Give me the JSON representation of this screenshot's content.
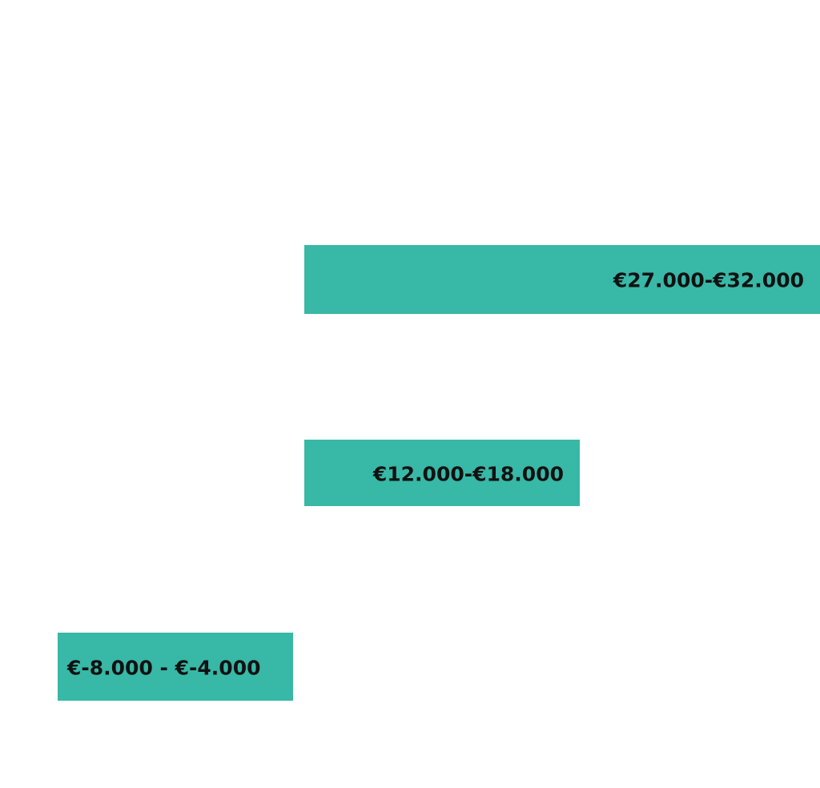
{
  "chart_data": {
    "type": "bar",
    "orientation": "horizontal",
    "subtype": "range",
    "bar_color": "#38b8a6",
    "label_color": "#111111",
    "grid": false,
    "legend": "none",
    "xlim": [
      -10000,
      32000
    ],
    "series": [
      {
        "ranges": [
          {
            "start": 27000,
            "end": 32000,
            "label": "€27.000-€32.000"
          },
          {
            "start": 12000,
            "end": 18000,
            "label": "€12.000-€18.000"
          },
          {
            "start": -8000,
            "end": -4000,
            "label": "€-8.000 - €-4.000"
          }
        ]
      }
    ]
  }
}
